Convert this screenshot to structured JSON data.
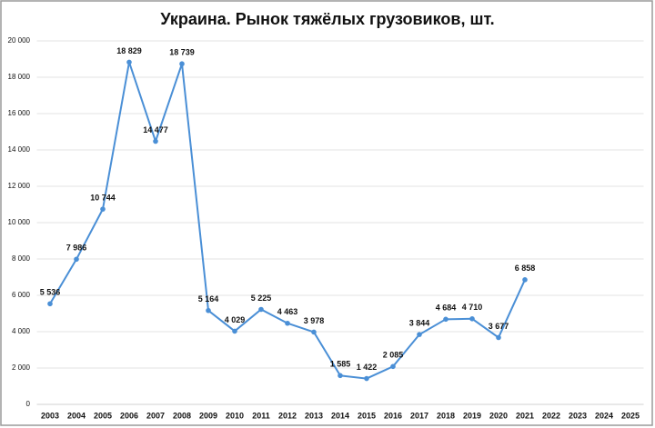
{
  "chart_data": {
    "type": "line",
    "title": "Украина. Рынок тяжёлых грузовиков, шт.",
    "categories": [
      "2003",
      "2004",
      "2005",
      "2006",
      "2007",
      "2008",
      "2009",
      "2010",
      "2011",
      "2012",
      "2013",
      "2014",
      "2015",
      "2016",
      "2017",
      "2018",
      "2019",
      "2020",
      "2021",
      "2022",
      "2023",
      "2024",
      "2025"
    ],
    "values": [
      5536,
      7986,
      10744,
      18829,
      14477,
      18739,
      5164,
      4029,
      5225,
      4463,
      3978,
      1585,
      1422,
      2085,
      3844,
      4684,
      4710,
      3677,
      6858,
      null,
      null,
      null,
      null
    ],
    "value_labels": [
      "5 536",
      "7 986",
      "10 744",
      "18 829",
      "14 477",
      "18 739",
      "5 164",
      "4 029",
      "5 225",
      "4 463",
      "3 978",
      "1 585",
      "1 422",
      "2 085",
      "3 844",
      "4 684",
      "4 710",
      "3 677",
      "6 858",
      null,
      null,
      null,
      null
    ],
    "color": "#4a8fd6",
    "ylim": [
      0,
      20000
    ],
    "yticks": [
      0,
      {
        "value": 2000,
        "label": "2 000"
      },
      {
        "value": 4000,
        "label": "4 000"
      },
      {
        "value": 6000,
        "label": "6 000"
      },
      {
        "value": 8000,
        "label": "8 000"
      },
      {
        "value": 10000,
        "label": "10 000"
      },
      {
        "value": 12000,
        "label": "12 000"
      },
      {
        "value": 14000,
        "label": "14 000"
      },
      {
        "value": 16000,
        "label": "16 000"
      },
      {
        "value": 18000,
        "label": "18 000"
      },
      {
        "value": 20000,
        "label": "20 000"
      }
    ],
    "grid": true
  }
}
